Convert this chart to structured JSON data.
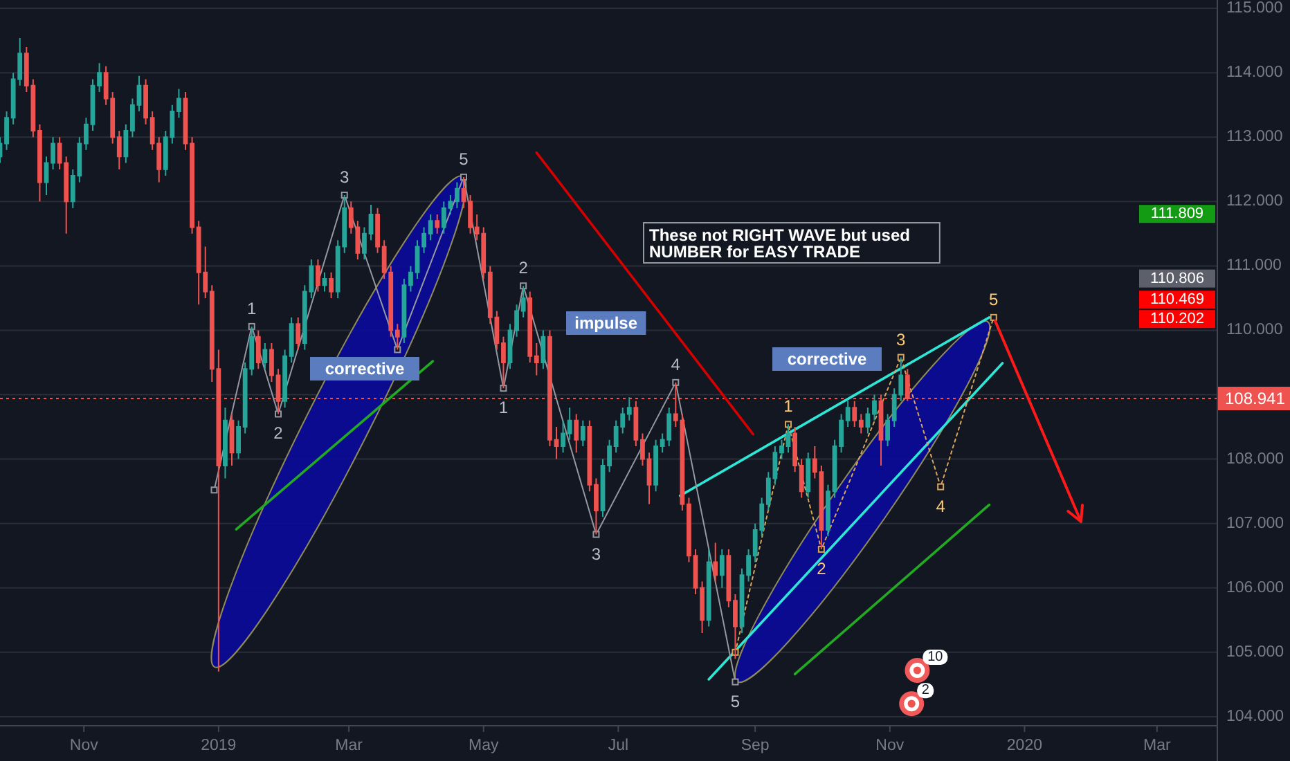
{
  "chart_data": {
    "type": "candlestick",
    "x": [
      "2018-09-24",
      "2018-09-27",
      "2018-09-30",
      "2018-10-03",
      "2018-10-06",
      "2018-10-09",
      "2018-10-12",
      "2018-10-15",
      "2018-10-18",
      "2018-10-21",
      "2018-10-24",
      "2018-10-27",
      "2018-10-30",
      "2018-11-02",
      "2018-11-05",
      "2018-11-08",
      "2018-11-11",
      "2018-11-14",
      "2018-11-17",
      "2018-11-20",
      "2018-11-23",
      "2018-11-26",
      "2018-11-29",
      "2018-12-02",
      "2018-12-05",
      "2018-12-08",
      "2018-12-11",
      "2018-12-14",
      "2018-12-17",
      "2018-12-20",
      "2018-12-23",
      "2018-12-26",
      "2018-12-29",
      "2019-01-01",
      "2019-01-04",
      "2019-01-07",
      "2019-01-10",
      "2019-01-13",
      "2019-01-16",
      "2019-01-19",
      "2019-01-22",
      "2019-01-25",
      "2019-01-28",
      "2019-01-31",
      "2019-02-03",
      "2019-02-06",
      "2019-02-09",
      "2019-02-12",
      "2019-02-15",
      "2019-02-18",
      "2019-02-21",
      "2019-02-24",
      "2019-02-27",
      "2019-03-02",
      "2019-03-05",
      "2019-03-08",
      "2019-03-11",
      "2019-03-14",
      "2019-03-17",
      "2019-03-20",
      "2019-03-23",
      "2019-03-26",
      "2019-03-29",
      "2019-04-01",
      "2019-04-04",
      "2019-04-07",
      "2019-04-10",
      "2019-04-13",
      "2019-04-16",
      "2019-04-19",
      "2019-04-22",
      "2019-04-25",
      "2019-04-28",
      "2019-05-01",
      "2019-05-04",
      "2019-05-07",
      "2019-05-10",
      "2019-05-13",
      "2019-05-16",
      "2019-05-19",
      "2019-05-22",
      "2019-05-25",
      "2019-05-28",
      "2019-05-31",
      "2019-06-03",
      "2019-06-06",
      "2019-06-09",
      "2019-06-12",
      "2019-06-15",
      "2019-06-18",
      "2019-06-21",
      "2019-06-24",
      "2019-06-27",
      "2019-06-30",
      "2019-07-03",
      "2019-07-06",
      "2019-07-09",
      "2019-07-12",
      "2019-07-15",
      "2019-07-18",
      "2019-07-21",
      "2019-07-24",
      "2019-07-27",
      "2019-07-30",
      "2019-08-02",
      "2019-08-05",
      "2019-08-08",
      "2019-08-11",
      "2019-08-14",
      "2019-08-17",
      "2019-08-20",
      "2019-08-23",
      "2019-08-26",
      "2019-08-29",
      "2019-09-01",
      "2019-09-04",
      "2019-09-07",
      "2019-09-10",
      "2019-09-13",
      "2019-09-16",
      "2019-09-19",
      "2019-09-22",
      "2019-09-25",
      "2019-09-28",
      "2019-10-01",
      "2019-10-04",
      "2019-10-07",
      "2019-10-10",
      "2019-10-13",
      "2019-10-16",
      "2019-10-19",
      "2019-10-22",
      "2019-10-25",
      "2019-10-28",
      "2019-10-31",
      "2019-11-03",
      "2019-11-06",
      "2019-11-09"
    ],
    "ohlc": [
      [
        112.7,
        113.0,
        112.6,
        112.9
      ],
      [
        112.9,
        113.4,
        112.8,
        113.3
      ],
      [
        113.3,
        114.0,
        113.2,
        113.9
      ],
      [
        113.9,
        114.54,
        113.8,
        114.3
      ],
      [
        114.3,
        114.4,
        113.7,
        113.8
      ],
      [
        113.8,
        113.9,
        113.0,
        113.1
      ],
      [
        113.1,
        113.2,
        112.0,
        112.3
      ],
      [
        112.3,
        112.7,
        112.1,
        112.6
      ],
      [
        112.6,
        113.0,
        112.5,
        112.9
      ],
      [
        112.9,
        113.0,
        112.5,
        112.6
      ],
      [
        112.6,
        112.7,
        111.5,
        112.0
      ],
      [
        112.0,
        112.5,
        111.9,
        112.4
      ],
      [
        112.4,
        113.0,
        112.3,
        112.9
      ],
      [
        112.9,
        113.3,
        112.8,
        113.2
      ],
      [
        113.2,
        113.9,
        113.1,
        113.8
      ],
      [
        113.8,
        114.15,
        113.7,
        114.0
      ],
      [
        114.0,
        114.1,
        113.5,
        113.6
      ],
      [
        113.6,
        113.7,
        112.9,
        113.0
      ],
      [
        113.0,
        113.1,
        112.5,
        112.7
      ],
      [
        112.7,
        113.2,
        112.6,
        113.1
      ],
      [
        113.1,
        113.6,
        113.0,
        113.5
      ],
      [
        113.5,
        113.95,
        113.4,
        113.8
      ],
      [
        113.8,
        113.9,
        113.2,
        113.3
      ],
      [
        113.3,
        113.4,
        112.8,
        112.9
      ],
      [
        112.9,
        113.0,
        112.3,
        112.5
      ],
      [
        112.5,
        113.1,
        112.4,
        113.0
      ],
      [
        113.0,
        113.5,
        112.9,
        113.4
      ],
      [
        113.4,
        113.75,
        113.3,
        113.6
      ],
      [
        113.6,
        113.7,
        112.8,
        112.9
      ],
      [
        112.9,
        113.0,
        111.5,
        111.6
      ],
      [
        111.6,
        111.7,
        110.4,
        110.9
      ],
      [
        110.9,
        111.3,
        110.5,
        110.6
      ],
      [
        110.6,
        110.7,
        109.2,
        109.4
      ],
      [
        109.4,
        109.7,
        104.7,
        107.9
      ],
      [
        107.9,
        108.8,
        107.7,
        108.6
      ],
      [
        108.6,
        108.7,
        107.9,
        108.1
      ],
      [
        108.1,
        108.6,
        108.0,
        108.5
      ],
      [
        108.5,
        109.5,
        108.4,
        109.4
      ],
      [
        109.4,
        110.06,
        109.3,
        109.9
      ],
      [
        109.9,
        110.0,
        109.4,
        109.5
      ],
      [
        109.5,
        109.8,
        109.4,
        109.7
      ],
      [
        109.7,
        109.8,
        109.2,
        109.3
      ],
      [
        109.3,
        109.4,
        108.7,
        108.9
      ],
      [
        108.9,
        109.7,
        108.8,
        109.6
      ],
      [
        109.6,
        110.2,
        109.5,
        110.1
      ],
      [
        110.1,
        110.2,
        109.7,
        109.8
      ],
      [
        109.8,
        110.7,
        109.7,
        110.6
      ],
      [
        110.6,
        111.1,
        110.5,
        111.0
      ],
      [
        111.0,
        111.1,
        110.6,
        110.7
      ],
      [
        110.7,
        110.9,
        110.6,
        110.8
      ],
      [
        110.8,
        110.9,
        110.5,
        110.6
      ],
      [
        110.6,
        111.4,
        110.5,
        111.3
      ],
      [
        111.3,
        112.1,
        111.2,
        111.9
      ],
      [
        111.9,
        112.0,
        111.5,
        111.6
      ],
      [
        111.6,
        111.7,
        111.1,
        111.2
      ],
      [
        111.2,
        111.6,
        111.1,
        111.5
      ],
      [
        111.5,
        111.95,
        111.4,
        111.8
      ],
      [
        111.8,
        111.9,
        111.2,
        111.3
      ],
      [
        111.3,
        111.4,
        110.8,
        110.9
      ],
      [
        110.9,
        111.0,
        109.9,
        110.0
      ],
      [
        110.0,
        110.1,
        109.7,
        109.9
      ],
      [
        109.9,
        110.8,
        109.8,
        110.7
      ],
      [
        110.7,
        111.0,
        110.6,
        110.9
      ],
      [
        110.9,
        111.4,
        110.8,
        111.3
      ],
      [
        111.3,
        111.6,
        111.2,
        111.5
      ],
      [
        111.5,
        111.8,
        111.4,
        111.7
      ],
      [
        111.7,
        111.8,
        111.5,
        111.6
      ],
      [
        111.6,
        112.0,
        111.5,
        111.9
      ],
      [
        111.9,
        112.1,
        111.8,
        112.0
      ],
      [
        112.0,
        112.3,
        111.9,
        112.2
      ],
      [
        112.2,
        112.38,
        111.9,
        112.0
      ],
      [
        112.0,
        112.1,
        111.5,
        111.6
      ],
      [
        111.6,
        111.8,
        111.4,
        111.5
      ],
      [
        111.5,
        111.6,
        110.8,
        110.9
      ],
      [
        110.9,
        111.0,
        110.1,
        110.2
      ],
      [
        110.2,
        110.3,
        109.7,
        109.8
      ],
      [
        109.8,
        109.9,
        109.1,
        109.5
      ],
      [
        109.5,
        110.1,
        109.4,
        110.0
      ],
      [
        110.0,
        110.4,
        109.9,
        110.3
      ],
      [
        110.3,
        110.69,
        110.2,
        110.5
      ],
      [
        110.5,
        110.6,
        109.5,
        109.6
      ],
      [
        109.6,
        109.8,
        109.3,
        109.5
      ],
      [
        109.5,
        110.0,
        109.4,
        109.9
      ],
      [
        109.9,
        110.0,
        108.2,
        108.3
      ],
      [
        108.3,
        108.5,
        108.0,
        108.2
      ],
      [
        108.2,
        108.6,
        108.1,
        108.4
      ],
      [
        108.4,
        108.8,
        108.3,
        108.6
      ],
      [
        108.6,
        108.7,
        108.1,
        108.3
      ],
      [
        108.3,
        108.6,
        108.2,
        108.5
      ],
      [
        108.5,
        108.6,
        107.5,
        107.6
      ],
      [
        107.6,
        107.7,
        106.83,
        107.2
      ],
      [
        107.2,
        108.0,
        107.1,
        107.9
      ],
      [
        107.9,
        108.3,
        107.8,
        108.2
      ],
      [
        108.2,
        108.6,
        108.1,
        108.5
      ],
      [
        108.5,
        108.8,
        108.4,
        108.7
      ],
      [
        108.7,
        108.96,
        108.6,
        108.8
      ],
      [
        108.8,
        108.9,
        108.2,
        108.3
      ],
      [
        108.3,
        108.4,
        107.9,
        108.0
      ],
      [
        108.0,
        108.1,
        107.3,
        107.6
      ],
      [
        107.6,
        108.3,
        107.5,
        108.2
      ],
      [
        108.2,
        108.4,
        108.1,
        108.3
      ],
      [
        108.3,
        108.8,
        108.2,
        108.7
      ],
      [
        108.7,
        109.19,
        108.5,
        108.6
      ],
      [
        108.6,
        108.7,
        107.2,
        107.3
      ],
      [
        107.3,
        107.4,
        106.4,
        106.5
      ],
      [
        106.5,
        106.6,
        105.9,
        106.0
      ],
      [
        106.0,
        106.1,
        105.3,
        105.5
      ],
      [
        105.5,
        106.6,
        105.4,
        106.4
      ],
      [
        106.4,
        106.7,
        106.1,
        106.2
      ],
      [
        106.2,
        106.6,
        106.0,
        106.5
      ],
      [
        106.5,
        106.6,
        105.7,
        105.8
      ],
      [
        105.8,
        105.9,
        104.9,
        105.4
      ],
      [
        105.4,
        106.3,
        105.3,
        106.2
      ],
      [
        106.2,
        106.6,
        106.1,
        106.5
      ],
      [
        106.5,
        107.0,
        106.4,
        106.9
      ],
      [
        106.9,
        107.4,
        106.8,
        107.3
      ],
      [
        107.3,
        107.8,
        107.2,
        107.7
      ],
      [
        107.7,
        108.2,
        107.6,
        108.1
      ],
      [
        108.1,
        108.3,
        108.0,
        108.2
      ],
      [
        108.2,
        108.54,
        108.1,
        108.4
      ],
      [
        108.4,
        108.5,
        107.8,
        107.9
      ],
      [
        107.9,
        108.0,
        107.4,
        107.5
      ],
      [
        107.5,
        108.1,
        107.4,
        108.0
      ],
      [
        108.0,
        108.2,
        107.7,
        107.8
      ],
      [
        107.8,
        107.9,
        106.6,
        106.9
      ],
      [
        106.9,
        107.6,
        106.8,
        107.5
      ],
      [
        107.5,
        108.3,
        107.4,
        108.2
      ],
      [
        108.2,
        108.7,
        108.1,
        108.6
      ],
      [
        108.6,
        108.9,
        108.5,
        108.8
      ],
      [
        108.8,
        108.9,
        108.5,
        108.6
      ],
      [
        108.6,
        108.7,
        108.4,
        108.5
      ],
      [
        108.5,
        108.8,
        108.4,
        108.7
      ],
      [
        108.7,
        109.0,
        108.6,
        108.9
      ],
      [
        108.9,
        109.0,
        107.9,
        108.3
      ],
      [
        108.3,
        108.7,
        108.2,
        108.6
      ],
      [
        108.6,
        109.1,
        108.5,
        109.0
      ],
      [
        109.0,
        109.58,
        108.9,
        109.3
      ],
      [
        109.3,
        109.4,
        108.9,
        108.941
      ]
    ],
    "series": [
      {
        "type": "line",
        "color": "#22ab22",
        "x": [
          "2019-01-09",
          "2019-04-08"
        ],
        "values": [
          106.91,
          109.52
        ]
      },
      {
        "type": "line",
        "color": "#d50000",
        "x": [
          "2019-05-25",
          "2019-08-31"
        ],
        "values": [
          112.76,
          108.39
        ]
      },
      {
        "type": "line",
        "color": "#2ee6d6",
        "x": [
          "2019-07-29",
          "2019-12-16"
        ],
        "values": [
          107.43,
          110.2
        ]
      },
      {
        "type": "line",
        "color": "#2ee6d6",
        "x": [
          "2019-08-11",
          "2019-12-22"
        ],
        "values": [
          104.58,
          109.49
        ]
      },
      {
        "type": "line",
        "color": "#22ab22",
        "x": [
          "2019-09-19",
          "2019-12-16"
        ],
        "values": [
          104.66,
          107.29
        ]
      },
      {
        "type": "line",
        "color": "#9598a1",
        "marker": "square",
        "x": [
          "2018-12-30",
          "2019-01-16",
          "2019-01-28",
          "2019-02-27",
          "2019-03-23",
          "2019-04-22",
          "2019-05-10",
          "2019-05-19",
          "2019-06-21",
          "2019-07-27",
          "2019-08-23"
        ],
        "values": [
          107.52,
          110.06,
          108.7,
          112.1,
          109.7,
          112.38,
          109.1,
          110.69,
          106.83,
          109.19,
          104.54
        ]
      },
      {
        "type": "line",
        "color": "#d9a45b",
        "marker": "square",
        "line_style": "dotted",
        "x": [
          "2019-08-23",
          "2019-09-16",
          "2019-10-01",
          "2019-11-06",
          "2019-11-24",
          "2019-12-18"
        ],
        "values": [
          105.0,
          108.54,
          106.6,
          109.58,
          107.57,
          110.2
        ]
      }
    ],
    "xlim": [
      "2018-09-24",
      "2020-03-28"
    ],
    "xticks": [
      {
        "value": "2018-11-01",
        "label": "Nov"
      },
      {
        "value": "2019-01-01",
        "label": "2019"
      },
      {
        "value": "2019-03-01",
        "label": "Mar"
      },
      {
        "value": "2019-05-01",
        "label": "May"
      },
      {
        "value": "2019-07-01",
        "label": "Jul"
      },
      {
        "value": "2019-09-01",
        "label": "Sep"
      },
      {
        "value": "2019-11-01",
        "label": "Nov"
      },
      {
        "value": "2020-01-01",
        "label": "2020"
      },
      {
        "value": "2020-03-01",
        "label": "Mar"
      }
    ],
    "ylim": [
      103.87,
      115.13
    ],
    "yticks": [
      {
        "value": 104,
        "label": "104.000"
      },
      {
        "value": 105,
        "label": "105.000"
      },
      {
        "value": 106,
        "label": "106.000"
      },
      {
        "value": 107,
        "label": "107.000"
      },
      {
        "value": 108,
        "label": "108.000"
      },
      {
        "value": 109,
        "label": null
      },
      {
        "value": 110,
        "label": "110.000"
      },
      {
        "value": 111,
        "label": "111.000"
      },
      {
        "value": 112,
        "label": "112.000"
      },
      {
        "value": 113,
        "label": "113.000"
      },
      {
        "value": 114,
        "label": "114.000"
      },
      {
        "value": 115,
        "label": "115.000"
      }
    ],
    "grid": "y",
    "ref_lines": [
      {
        "axis": "y",
        "value": 108.941,
        "label": "108.941",
        "color": "#ef5350",
        "line_style": "dotted"
      }
    ],
    "annotations": [
      "These not RIGHT WAVE but used NUMBER for EASY TRADE",
      "impulse",
      "corrective",
      "corrective",
      "10",
      "2",
      "111.809",
      "110.806",
      "110.469",
      "110.202",
      {
        "text": "1",
        "x": "2019-01-16",
        "y": 110.06
      },
      {
        "text": "2",
        "x": "2019-01-28",
        "y": 108.7
      },
      {
        "text": "3",
        "x": "2019-02-27",
        "y": 112.1
      },
      {
        "text": "5",
        "x": "2019-04-22",
        "y": 112.38
      },
      {
        "text": "1",
        "x": "2019-05-10",
        "y": 109.1
      },
      {
        "text": "2",
        "x": "2019-05-19",
        "y": 110.69
      },
      {
        "text": "3",
        "x": "2019-06-21",
        "y": 106.83
      },
      {
        "text": "4",
        "x": "2019-07-27",
        "y": 109.19
      },
      {
        "text": "5",
        "x": "2019-08-23",
        "y": 104.54
      },
      {
        "text": "1",
        "x": "2019-09-16",
        "y": 108.54
      },
      {
        "text": "2",
        "x": "2019-10-01",
        "y": 106.6
      },
      {
        "text": "3",
        "x": "2019-11-06",
        "y": 109.58
      },
      {
        "text": "4",
        "x": "2019-11-24",
        "y": 107.57
      },
      {
        "text": "5",
        "x": "2019-12-18",
        "y": 110.2
      }
    ]
  }
}
